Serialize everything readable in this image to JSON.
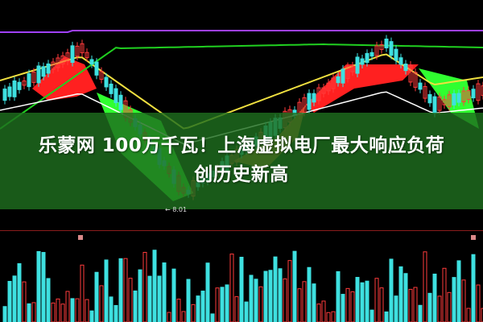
{
  "headline": {
    "line1": "乐蒙网 100万千瓦！上海虚拟电厂最大响应负荷",
    "line2": "创历史新高"
  },
  "chart": {
    "low_price_label": "← 8.01",
    "colors": {
      "background": "#000000",
      "up_candle": "#ff3b3b",
      "down_candle": "#3ee0e0",
      "ribbon_up": "#ff2020",
      "ribbon_down": "#30ff30",
      "ribbon_brown": "#b0501a",
      "ma_yellow": "#f0e040",
      "ma_green": "#20d020",
      "ma_purple": "#a040ff",
      "ma_white": "#ffffff",
      "overlay_band": "#1e6e1e"
    }
  }
}
